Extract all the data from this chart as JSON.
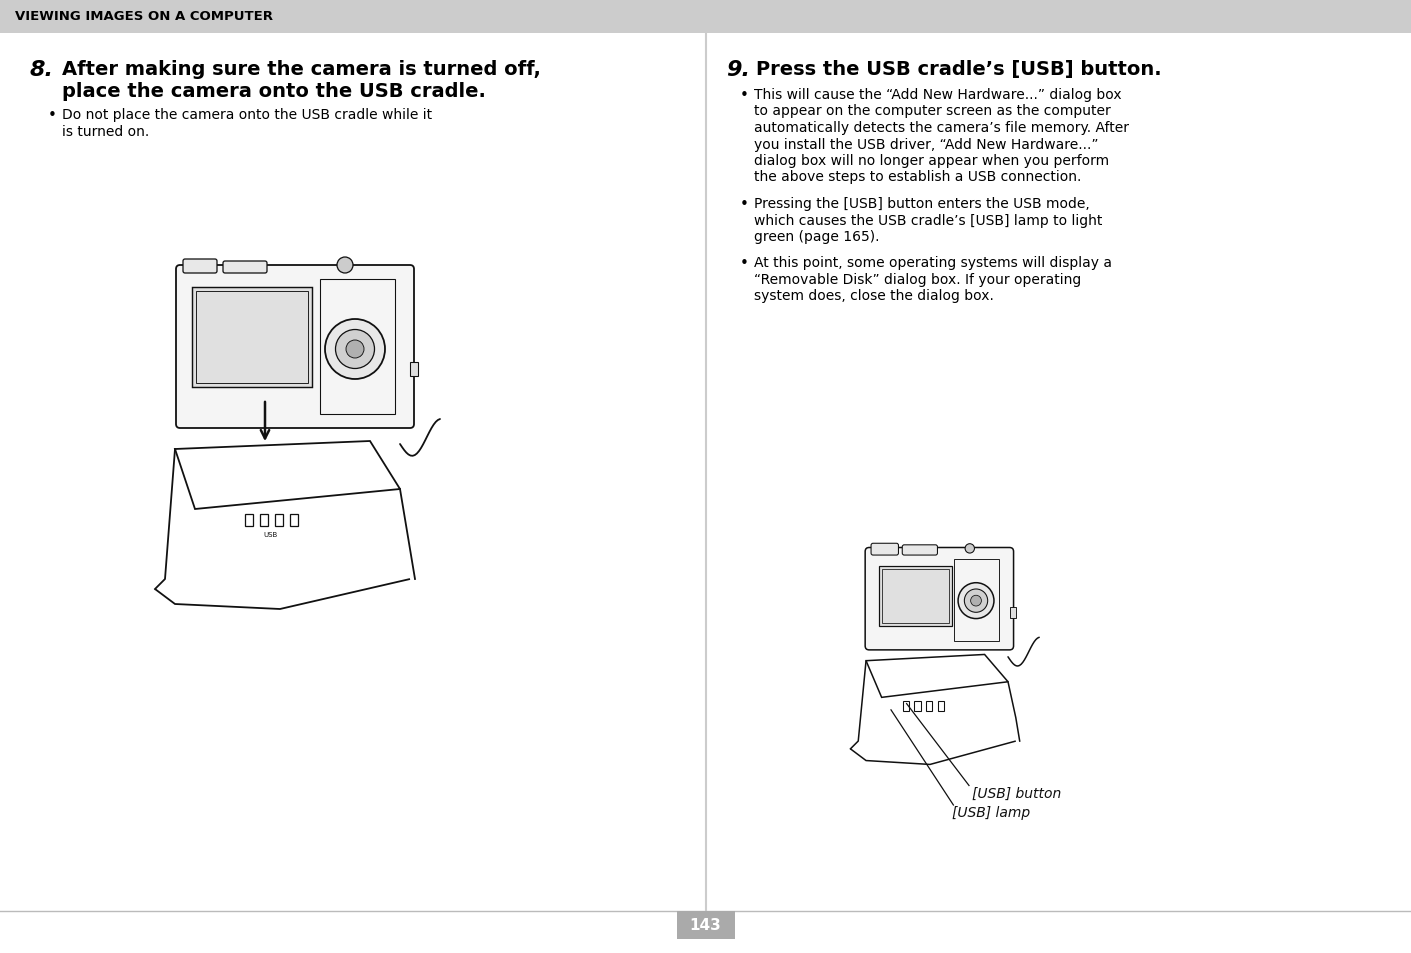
{
  "page_bg": "#ffffff",
  "header_bg": "#cccccc",
  "header_text": "VIEWING IMAGES ON A COMPUTER",
  "header_text_color": "#000000",
  "header_font_size": 9.5,
  "divider_color": "#bbbbbb",
  "page_number": "143",
  "page_num_bg": "#aaaaaa",
  "page_num_color": "#ffffff",
  "left_step_number": "8.",
  "left_heading_line1": "After making sure the camera is turned off,",
  "left_heading_line2": "place the camera onto the USB cradle.",
  "left_bullet_line1": "Do not place the camera onto the USB cradle while it",
  "left_bullet_line2": "is turned on.",
  "right_step_number": "9.",
  "right_heading": "Press the USB cradle’s [USB] button.",
  "right_bullet1_lines": [
    "This will cause the “Add New Hardware...” dialog box",
    "to appear on the computer screen as the computer",
    "automatically detects the camera’s file memory. After",
    "you install the USB driver, “Add New Hardware...”",
    "dialog box will no longer appear when you perform",
    "the above steps to establish a USB connection."
  ],
  "right_bullet2_lines": [
    "Pressing the [USB] button enters the USB mode,",
    "which causes the USB cradle’s [USB] lamp to light",
    "green (page 165)."
  ],
  "right_bullet3_lines": [
    "At this point, some operating systems will display a",
    "“Removable Disk” dialog box. If your operating",
    "system does, close the dialog box."
  ],
  "label_usb_button": "[USB] button",
  "label_usb_lamp": "[USB] lamp",
  "center_divider_color": "#cccccc",
  "heading_font_size": 14,
  "step_font_size": 16,
  "body_font_size": 10,
  "label_font_size": 10
}
